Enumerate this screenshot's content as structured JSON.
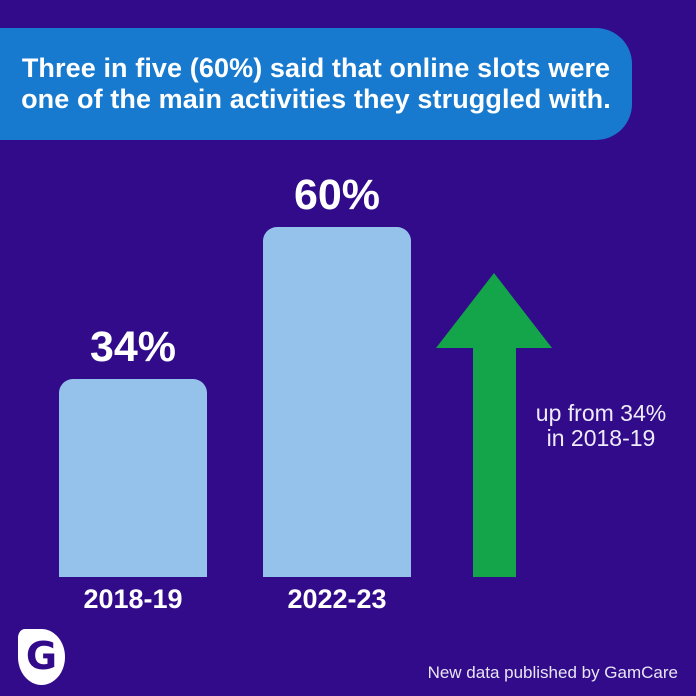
{
  "headline": {
    "line1": "Three in five (60%) said that online slots were",
    "line2": "one of the main activities they struggled with."
  },
  "chart_data": {
    "type": "bar",
    "title": "Three in five (60%) said that online slots were one of the main activities they struggled with.",
    "categories": [
      "2018-19",
      "2022-23"
    ],
    "values": [
      34,
      60
    ],
    "value_labels": [
      "34%",
      "60%"
    ],
    "unit": "percent",
    "ylim": [
      0,
      70
    ],
    "grid": false,
    "legend": false,
    "annotation": "up from 34% in 2018-19"
  },
  "annotation": {
    "line1": "up from 34%",
    "line2": "in 2018-19"
  },
  "footer": {
    "logo_letter": "G",
    "attribution": "New data published by GamCare"
  },
  "colors": {
    "background": "#310b8a",
    "banner": "#177acf",
    "bar": "#94c2ea",
    "arrow": "#14a449",
    "text": "#ffffff"
  }
}
